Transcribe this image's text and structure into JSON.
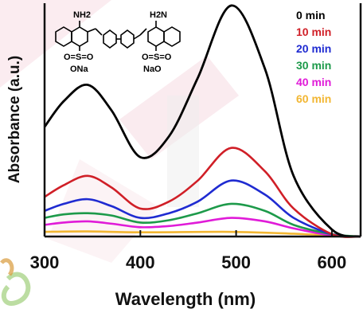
{
  "colors": {
    "accent_pink": "#f3c9d3",
    "accent_gray": "#e6e6e6",
    "axis": "#111111"
  },
  "molecule": {
    "left_label_top": "NH2",
    "left_label_bottom": "O=S=O",
    "left_label_salt": "ONa",
    "right_label_top": "H2N",
    "right_label_bottom": "O=S=O",
    "right_label_salt": "NaO"
  },
  "chart_data": {
    "type": "line",
    "title": "",
    "xlabel": "Wavelength (nm)",
    "ylabel": "Absorbance (a.u.)",
    "xlim": [
      300,
      630
    ],
    "ylim": [
      0,
      1.0
    ],
    "xticks": [
      300,
      400,
      500,
      600
    ],
    "yticks_shown": false,
    "legend_position": "top-right",
    "series": [
      {
        "name": "0 min",
        "color": "#000000",
        "x": [
          300,
          320,
          345,
          370,
          400,
          430,
          460,
          495,
          530,
          560,
          600,
          630
        ],
        "y": [
          0.47,
          0.58,
          0.65,
          0.54,
          0.34,
          0.43,
          0.68,
          0.99,
          0.72,
          0.26,
          0.03,
          0.0
        ]
      },
      {
        "name": "10 min",
        "color": "#d01f27",
        "x": [
          300,
          320,
          345,
          370,
          400,
          430,
          460,
          495,
          530,
          560,
          600,
          630
        ],
        "y": [
          0.17,
          0.22,
          0.26,
          0.21,
          0.12,
          0.15,
          0.24,
          0.38,
          0.28,
          0.12,
          0.01,
          0.0
        ]
      },
      {
        "name": "20 min",
        "color": "#1f2bd1",
        "x": [
          300,
          320,
          345,
          370,
          400,
          430,
          460,
          495,
          530,
          560,
          600,
          630
        ],
        "y": [
          0.11,
          0.14,
          0.16,
          0.13,
          0.08,
          0.1,
          0.15,
          0.24,
          0.18,
          0.08,
          0.01,
          0.0
        ]
      },
      {
        "name": "30 min",
        "color": "#1d9a4a",
        "x": [
          300,
          320,
          345,
          370,
          400,
          430,
          460,
          495,
          530,
          560,
          600,
          630
        ],
        "y": [
          0.08,
          0.095,
          0.1,
          0.09,
          0.06,
          0.07,
          0.1,
          0.14,
          0.11,
          0.05,
          0.01,
          0.0
        ]
      },
      {
        "name": "40 min",
        "color": "#e01bd8",
        "x": [
          300,
          320,
          345,
          370,
          400,
          430,
          460,
          495,
          530,
          560,
          600,
          630
        ],
        "y": [
          0.05,
          0.06,
          0.065,
          0.055,
          0.04,
          0.045,
          0.06,
          0.08,
          0.065,
          0.035,
          0.005,
          0.0
        ]
      },
      {
        "name": "60 min",
        "color": "#f2b632",
        "x": [
          300,
          345,
          400,
          495,
          560,
          600,
          630
        ],
        "y": [
          0.02,
          0.022,
          0.018,
          0.02,
          0.012,
          0.004,
          0.0
        ]
      }
    ]
  }
}
